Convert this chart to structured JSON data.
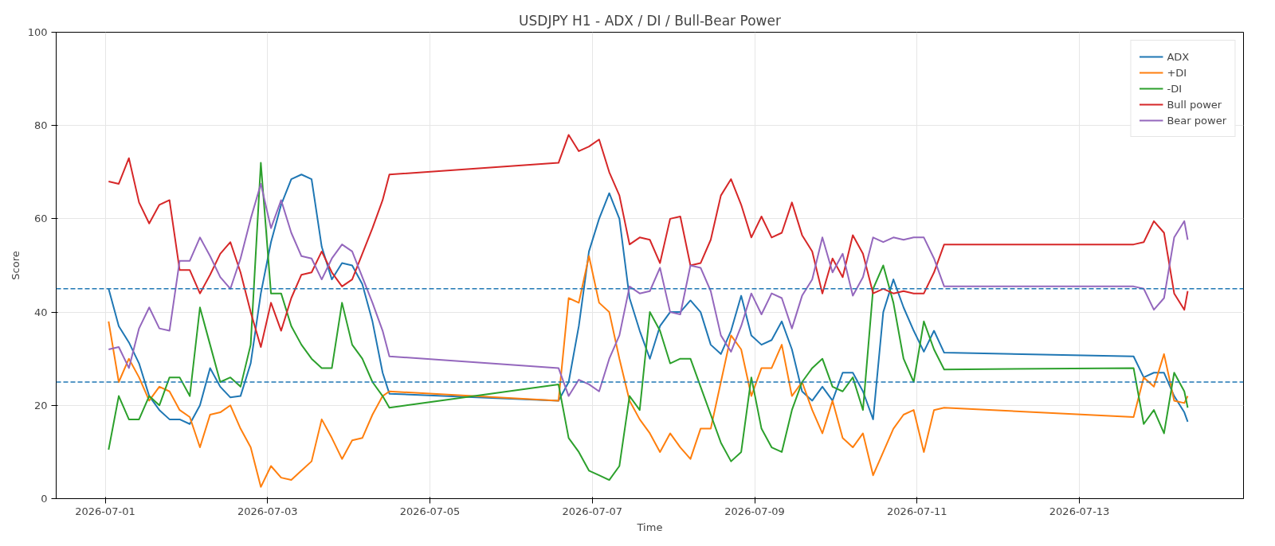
{
  "chart_data": {
    "type": "line",
    "title": "USDJPY H1 - ADX / DI / Bull-Bear Power",
    "xlabel": "Time",
    "ylabel": "Score",
    "x": [
      "2026-07-01T01:00",
      "2026-07-01T04:00",
      "2026-07-01T07:00",
      "2026-07-01T10:00",
      "2026-07-01T13:00",
      "2026-07-01T16:00",
      "2026-07-01T19:00",
      "2026-07-01T22:00",
      "2026-07-02T01:00",
      "2026-07-02T04:00",
      "2026-07-02T07:00",
      "2026-07-02T10:00",
      "2026-07-02T13:00",
      "2026-07-02T16:00",
      "2026-07-02T19:00",
      "2026-07-02T22:00",
      "2026-07-03T01:00",
      "2026-07-03T04:00",
      "2026-07-03T07:00",
      "2026-07-03T10:00",
      "2026-07-03T13:00",
      "2026-07-03T16:00",
      "2026-07-03T19:00",
      "2026-07-03T22:00",
      "2026-07-04T01:00",
      "2026-07-04T04:00",
      "2026-07-04T07:00",
      "2026-07-04T10:00",
      "2026-07-04T12:00",
      "2026-07-06T14:00",
      "2026-07-06T17:00",
      "2026-07-06T20:00",
      "2026-07-06T23:00",
      "2026-07-07T02:00",
      "2026-07-07T05:00",
      "2026-07-07T08:00",
      "2026-07-07T11:00",
      "2026-07-07T14:00",
      "2026-07-07T17:00",
      "2026-07-07T20:00",
      "2026-07-07T23:00",
      "2026-07-08T02:00",
      "2026-07-08T05:00",
      "2026-07-08T08:00",
      "2026-07-08T11:00",
      "2026-07-08T14:00",
      "2026-07-08T17:00",
      "2026-07-08T20:00",
      "2026-07-08T23:00",
      "2026-07-09T02:00",
      "2026-07-09T05:00",
      "2026-07-09T08:00",
      "2026-07-09T11:00",
      "2026-07-09T14:00",
      "2026-07-09T17:00",
      "2026-07-09T20:00",
      "2026-07-09T23:00",
      "2026-07-10T02:00",
      "2026-07-10T05:00",
      "2026-07-10T08:00",
      "2026-07-10T11:00",
      "2026-07-10T14:00",
      "2026-07-10T17:00",
      "2026-07-10T20:00",
      "2026-07-10T23:00",
      "2026-07-11T02:00",
      "2026-07-11T05:00",
      "2026-07-11T08:00",
      "2026-07-13T16:00",
      "2026-07-13T19:00",
      "2026-07-13T22:00",
      "2026-07-14T01:00",
      "2026-07-14T04:00",
      "2026-07-14T07:00",
      "2026-07-14T08:00"
    ],
    "series": [
      {
        "name": "ADX",
        "color": "#1f77b4",
        "values": [
          45,
          37,
          33.5,
          29,
          22,
          19,
          17,
          17,
          16,
          20,
          28,
          24,
          21.7,
          22,
          29,
          44,
          55,
          63,
          68.5,
          69.5,
          68.5,
          54,
          47,
          50.5,
          50,
          46,
          38,
          27,
          22.5,
          21,
          25,
          37,
          53,
          60,
          65.5,
          60,
          43,
          36,
          30,
          37,
          40,
          40,
          42.5,
          40,
          33,
          31,
          36,
          43.5,
          35,
          33,
          34,
          38,
          32,
          23,
          21,
          24,
          21,
          27,
          27,
          23,
          17,
          40,
          47,
          41,
          36,
          31.5,
          36,
          31.3,
          30.5,
          26,
          27,
          27,
          22,
          18.5,
          16.5
        ]
      },
      {
        "name": "+DI",
        "color": "#ff7f0e",
        "values": [
          38,
          25,
          30,
          26,
          21,
          24,
          23,
          19,
          17.5,
          11,
          18,
          18.5,
          20,
          15,
          11,
          2.5,
          7,
          4.5,
          4,
          6,
          8,
          17,
          13,
          8.5,
          12.5,
          13,
          18,
          22,
          23,
          21,
          43,
          42,
          52,
          42,
          40,
          30,
          21,
          17,
          14,
          10,
          14,
          11,
          8.5,
          15,
          15,
          25,
          35,
          32,
          22,
          28,
          28,
          33,
          22,
          25,
          19,
          14,
          21,
          13,
          11,
          14,
          5,
          10,
          15,
          18,
          19,
          10,
          19,
          19.5,
          17.5,
          26,
          24,
          31,
          21,
          20.5,
          22
        ]
      },
      {
        "name": "-DI",
        "color": "#2ca02c",
        "values": [
          10.5,
          22,
          17,
          17,
          22,
          20,
          26,
          26,
          22,
          41,
          33,
          25,
          26,
          24,
          33,
          72,
          44,
          44,
          37,
          33,
          30,
          28,
          28,
          42,
          33,
          30,
          25,
          22,
          19.5,
          24.5,
          13,
          10,
          6,
          5,
          4,
          7,
          22,
          19,
          40,
          36,
          29,
          30,
          30,
          24,
          18,
          12,
          8,
          10,
          26,
          15,
          11,
          10,
          19,
          25,
          28,
          30,
          24,
          23,
          26,
          19,
          45,
          50,
          42,
          30,
          25,
          38,
          32,
          27.7,
          28,
          16,
          19,
          14,
          27,
          23,
          19.5
        ]
      },
      {
        "name": "Bull power",
        "color": "#d62728",
        "values": [
          68,
          67.5,
          73,
          63.5,
          59,
          63,
          64,
          49,
          49,
          44,
          48,
          52.5,
          55,
          48.5,
          40,
          32.5,
          42,
          36,
          43,
          48,
          48.5,
          53,
          48.5,
          45.5,
          47,
          52.5,
          58,
          64,
          69.5,
          72,
          78,
          74.5,
          75.5,
          77,
          70,
          65,
          54.5,
          56,
          55.5,
          50.5,
          60,
          60.5,
          50,
          50.5,
          55.5,
          65,
          68.5,
          63,
          56,
          60.5,
          56,
          57,
          63.5,
          56.5,
          53,
          44,
          51.5,
          47.5,
          56.5,
          52.5,
          44,
          45,
          44,
          44.5,
          44,
          44,
          48.5,
          54.5,
          54.5,
          55,
          59.5,
          57,
          44,
          40.5,
          44.5
        ]
      },
      {
        "name": "Bear power",
        "color": "#9467bd",
        "values": [
          32,
          32.5,
          28,
          36.5,
          41,
          36.5,
          36,
          51,
          51,
          56,
          52,
          47.5,
          45,
          51.5,
          60,
          67.5,
          58,
          64,
          57,
          52,
          51.5,
          47,
          51.5,
          54.5,
          53,
          47.5,
          42,
          36,
          30.5,
          28,
          22,
          25.5,
          24.5,
          23,
          30,
          35,
          45.5,
          44,
          44.5,
          49.5,
          40,
          39.5,
          50,
          49.5,
          44.5,
          35,
          31.5,
          37,
          44,
          39.5,
          44,
          43,
          36.5,
          43.5,
          47,
          56,
          48.5,
          52.5,
          43.5,
          47.5,
          56,
          55,
          56,
          55.5,
          56,
          56,
          51.5,
          45.5,
          45.5,
          45,
          40.5,
          43,
          56,
          59.5,
          55.5
        ]
      }
    ],
    "xlim": [
      "2026-06-30T09:30",
      "2026-07-15T00:30"
    ],
    "xticks": [
      "2026-07-01",
      "2026-07-03",
      "2026-07-05",
      "2026-07-07",
      "2026-07-09",
      "2026-07-11",
      "2026-07-13"
    ],
    "ylim": [
      0,
      100
    ],
    "yticks": [
      0,
      20,
      40,
      60,
      80,
      100
    ],
    "ref_lines": [
      {
        "axis": "y",
        "value": 45,
        "color": "#1f77b4",
        "line_style": "dashed"
      },
      {
        "axis": "y",
        "value": 25,
        "color": "#1f77b4",
        "line_style": "dashed"
      }
    ],
    "grid": true,
    "legend": "top right"
  }
}
